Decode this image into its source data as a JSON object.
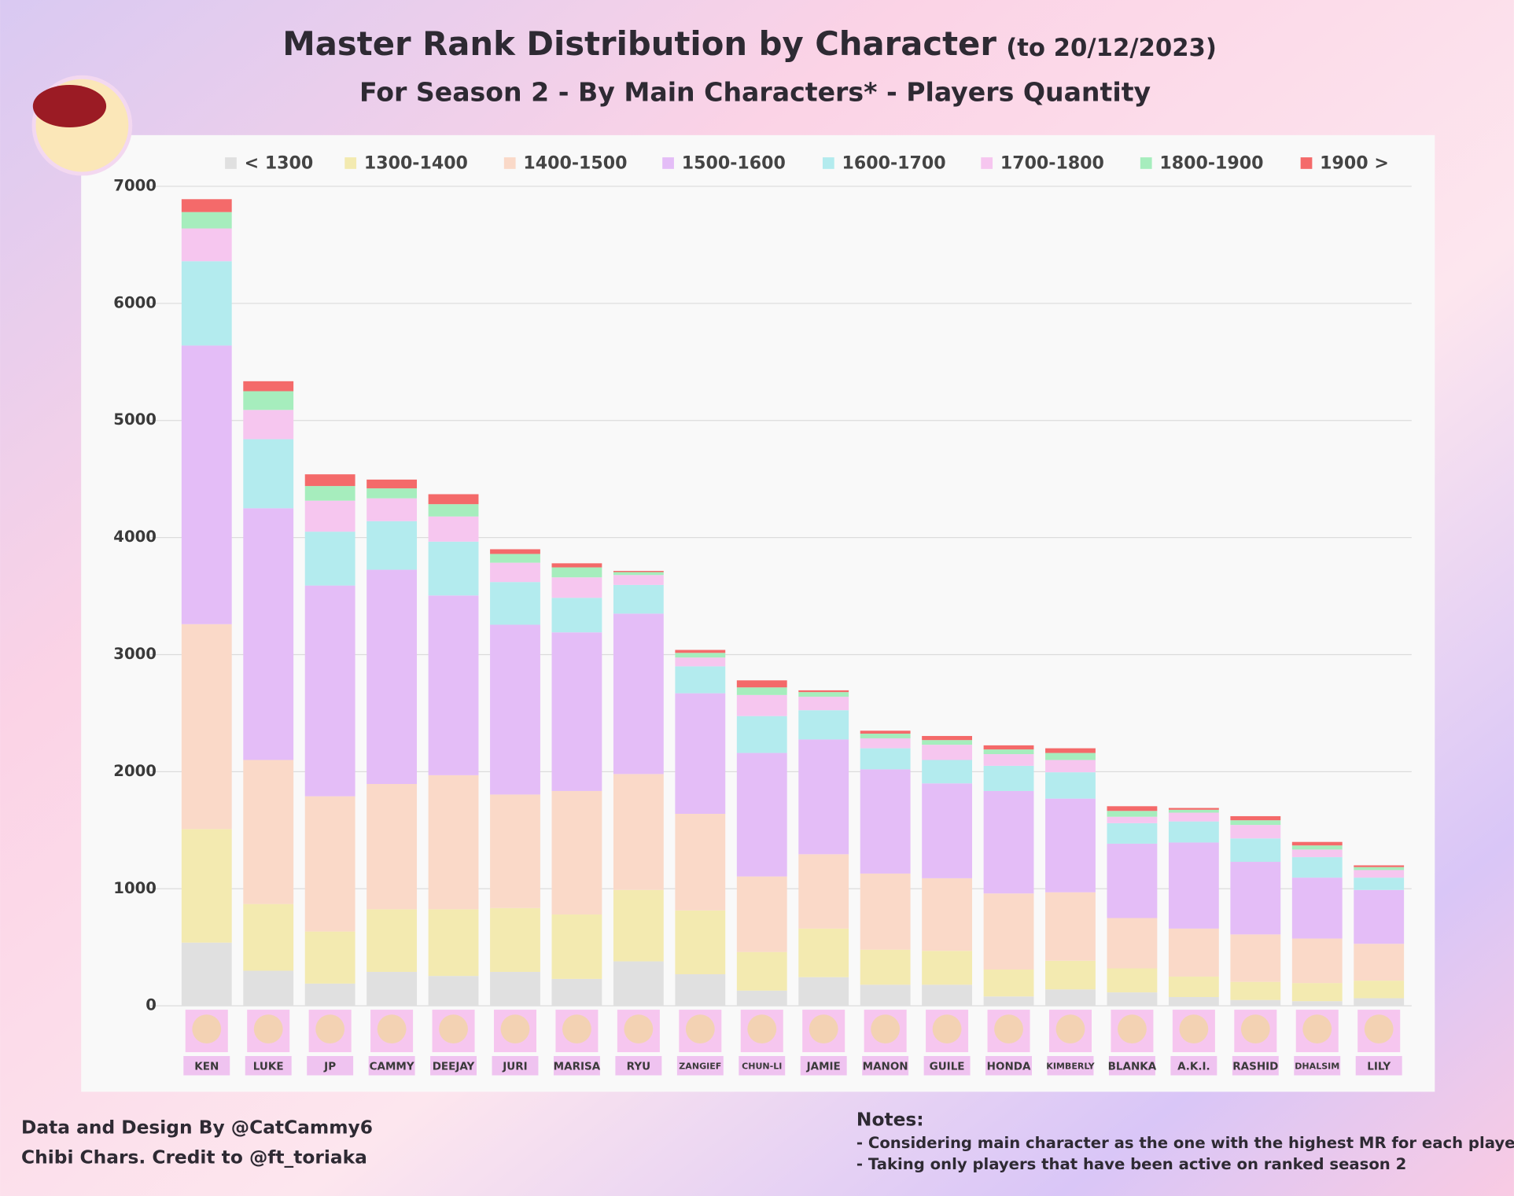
{
  "chart_data": {
    "type": "stacked-bar",
    "title": "Master Rank Distribution by Character",
    "title_date": "(to 20/12/2023)",
    "subtitle": "For Season 2 - By Main Characters* - Players Quantity",
    "categories": [
      "KEN",
      "LUKE",
      "JP",
      "CAMMY",
      "DEEJAY",
      "JURI",
      "MARISA",
      "RYU",
      "ZANGIEF",
      "CHUN-LI",
      "JAMIE",
      "MANON",
      "GUILE",
      "HONDA",
      "KIMBERLY",
      "BLANKA",
      "A.K.I.",
      "RASHID",
      "DHALSIM",
      "LILY"
    ],
    "series": [
      {
        "name": "< 1300",
        "color": "#e0e0e0",
        "values": [
          540,
          300,
          190,
          290,
          255,
          290,
          230,
          380,
          270,
          130,
          245,
          180,
          180,
          80,
          140,
          115,
          75,
          50,
          40,
          65
        ]
      },
      {
        "name": "1300-1400",
        "color": "#f3eab0",
        "values": [
          970,
          570,
          445,
          535,
          570,
          545,
          550,
          610,
          545,
          330,
          415,
          300,
          290,
          230,
          245,
          205,
          175,
          155,
          155,
          150
        ]
      },
      {
        "name": "1400-1500",
        "color": "#fad9c8",
        "values": [
          1750,
          1230,
          1155,
          1070,
          1145,
          970,
          1055,
          990,
          825,
          645,
          635,
          650,
          620,
          650,
          585,
          430,
          410,
          405,
          380,
          315
        ]
      },
      {
        "name": "1500-1600",
        "color": "#e4bdf7",
        "values": [
          2380,
          2150,
          1800,
          1830,
          1535,
          1450,
          1355,
          1370,
          1030,
          1055,
          980,
          890,
          810,
          875,
          800,
          635,
          735,
          620,
          520,
          460
        ]
      },
      {
        "name": "1600-1700",
        "color": "#b3ebee",
        "values": [
          720,
          590,
          460,
          415,
          460,
          365,
          295,
          245,
          230,
          315,
          250,
          180,
          200,
          215,
          225,
          175,
          180,
          200,
          175,
          105
        ]
      },
      {
        "name": "1700-1800",
        "color": "#f6c6ef",
        "values": [
          280,
          250,
          265,
          195,
          215,
          165,
          175,
          85,
          75,
          180,
          115,
          85,
          130,
          100,
          105,
          55,
          75,
          115,
          65,
          65
        ]
      },
      {
        "name": "1800-1900",
        "color": "#a6edbd",
        "values": [
          140,
          160,
          125,
          85,
          105,
          75,
          85,
          25,
          40,
          65,
          40,
          40,
          40,
          40,
          60,
          50,
          25,
          40,
          35,
          25
        ]
      },
      {
        "name": "1900 >",
        "color": "#f46a6a",
        "values": [
          110,
          85,
          100,
          75,
          85,
          40,
          35,
          10,
          25,
          60,
          15,
          25,
          35,
          35,
          40,
          40,
          15,
          35,
          30,
          15
        ]
      }
    ],
    "ylim": [
      0,
      7000
    ],
    "yticks": [
      0,
      1000,
      2000,
      3000,
      4000,
      5000,
      6000,
      7000
    ],
    "grid": true
  },
  "credits": [
    "Data and Design By @CatCammy6",
    "Chibi Chars. Credit to @ft_toriaka"
  ],
  "notes": {
    "title": "Notes:",
    "lines": [
      "- Considering main character as the one with the highest MR for each player",
      "- Taking only players that have been active on ranked season 2"
    ]
  }
}
